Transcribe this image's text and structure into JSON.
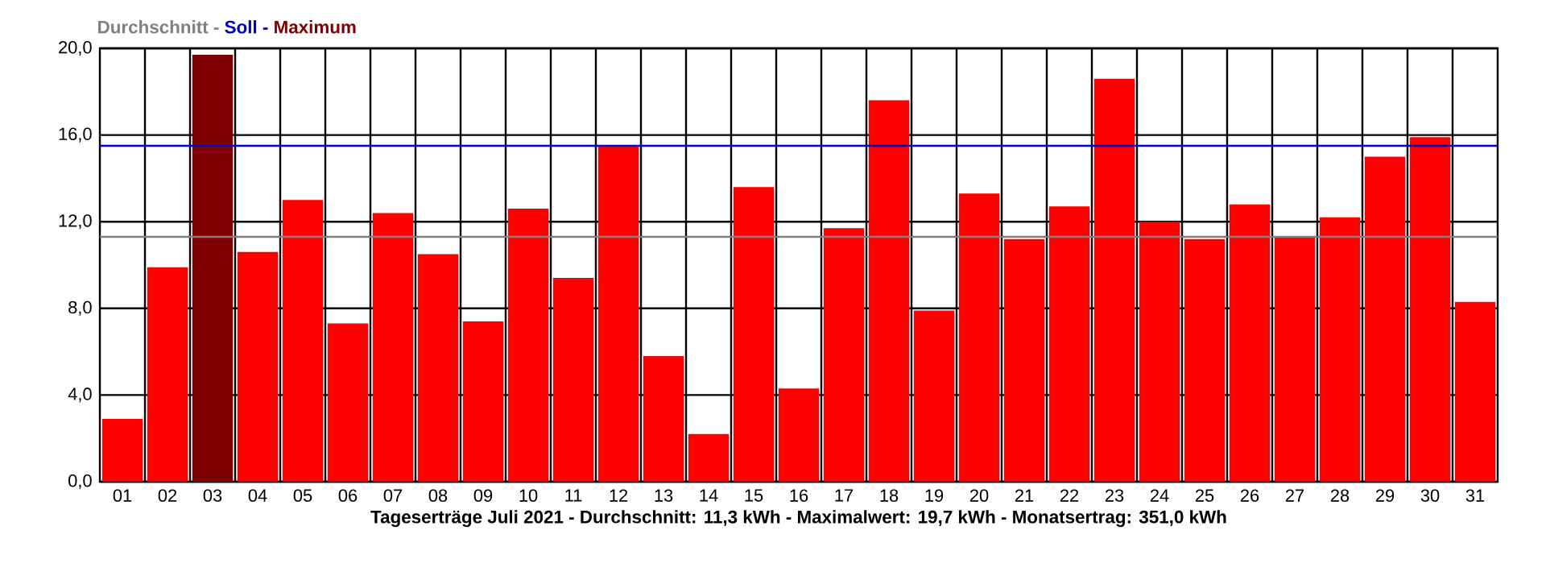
{
  "chart_data": {
    "type": "bar",
    "xlabel": "Tageserträge Juli 2021 - Durchschnitt: 11,3 kWh - Maximalwert: 19,7 kWh - Monatsertrag: 351,0 kWh",
    "categories": [
      "01",
      "02",
      "03",
      "04",
      "05",
      "06",
      "07",
      "08",
      "09",
      "10",
      "11",
      "12",
      "13",
      "14",
      "15",
      "16",
      "17",
      "18",
      "19",
      "20",
      "21",
      "22",
      "23",
      "24",
      "25",
      "26",
      "27",
      "28",
      "29",
      "30",
      "31"
    ],
    "values": [
      2.9,
      9.9,
      19.7,
      10.6,
      13.0,
      7.3,
      12.4,
      10.5,
      7.4,
      12.6,
      9.4,
      15.5,
      5.8,
      2.2,
      13.6,
      4.3,
      11.7,
      17.6,
      7.9,
      13.3,
      11.2,
      12.7,
      18.6,
      12.0,
      11.2,
      12.8,
      11.3,
      12.2,
      15.0,
      15.9,
      8.3
    ],
    "colors": [
      "#ff0000",
      "#ff0000",
      "#800000",
      "#ff0000",
      "#ff0000",
      "#ff0000",
      "#ff0000",
      "#ff0000",
      "#ff0000",
      "#ff0000",
      "#ff0000",
      "#ff0000",
      "#ff0000",
      "#ff0000",
      "#ff0000",
      "#ff0000",
      "#ff0000",
      "#ff0000",
      "#ff0000",
      "#ff0000",
      "#ff0000",
      "#ff0000",
      "#ff0000",
      "#ff0000",
      "#ff0000",
      "#ff0000",
      "#ff0000",
      "#ff0000",
      "#ff0000",
      "#ff0000",
      "#ff0000"
    ],
    "ylim": [
      0,
      20
    ],
    "yticks": [
      {
        "value": 0,
        "label": "0,0"
      },
      {
        "value": 4,
        "label": "4,0"
      },
      {
        "value": 8,
        "label": "8,0"
      },
      {
        "value": 12,
        "label": "12,0"
      },
      {
        "value": 16,
        "label": "16,0"
      },
      {
        "value": 20,
        "label": "20,0"
      }
    ],
    "grid": true,
    "ref_lines": [
      {
        "axis": "y",
        "value": 11.3,
        "label": "Durchschnitt",
        "color": "#808080"
      },
      {
        "axis": "y",
        "value": 15.5,
        "label": "Soll",
        "color": "#0000c0"
      }
    ],
    "annotations": [
      "-",
      "-",
      "Maximum"
    ]
  }
}
